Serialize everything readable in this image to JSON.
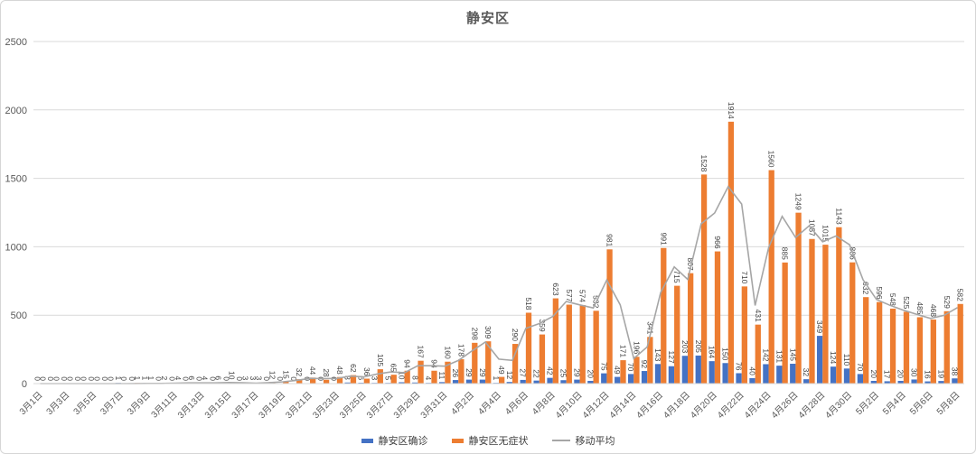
{
  "title": "静安区",
  "chart_data": {
    "type": "bar",
    "title": "静安区",
    "categories": [
      "3月1日",
      "3月2日",
      "3月3日",
      "3月4日",
      "3月5日",
      "3月6日",
      "3月7日",
      "3月8日",
      "3月9日",
      "3月10日",
      "3月11日",
      "3月12日",
      "3月13日",
      "3月14日",
      "3月15日",
      "3月16日",
      "3月17日",
      "3月18日",
      "3月19日",
      "3月20日",
      "3月21日",
      "3月22日",
      "3月23日",
      "3月24日",
      "3月25日",
      "3月26日",
      "3月27日",
      "3月28日",
      "3月29日",
      "3月30日",
      "3月31日",
      "4月1日",
      "4月2日",
      "4月3日",
      "4月4日",
      "4月5日",
      "4月6日",
      "4月7日",
      "4月8日",
      "4月9日",
      "4月10日",
      "4月11日",
      "4月12日",
      "4月13日",
      "4月14日",
      "4月15日",
      "4月16日",
      "4月17日",
      "4月18日",
      "4月19日",
      "4月20日",
      "4月21日",
      "4月22日",
      "4月23日",
      "4月24日",
      "4月25日",
      "4月26日",
      "4月27日",
      "4月28日",
      "4月29日",
      "4月30日",
      "5月1日",
      "5月2日",
      "5月3日",
      "5月4日",
      "5月5日",
      "5月6日",
      "5月7日",
      "5月8日"
    ],
    "x_tick_every": 2,
    "series": [
      {
        "name": "静安区确诊",
        "type": "bar",
        "color": "#4472C4",
        "values": [
          0,
          0,
          0,
          0,
          0,
          0,
          1,
          0,
          1,
          0,
          0,
          0,
          0,
          0,
          0,
          0,
          3,
          0,
          0,
          0,
          0,
          0,
          0,
          8,
          6,
          3,
          5,
          10,
          8,
          4,
          11,
          26,
          29,
          29,
          1,
          12,
          27,
          22,
          42,
          25,
          29,
          20,
          75,
          49,
          70,
          92,
          143,
          127,
          203,
          205,
          164,
          150,
          76,
          40,
          142,
          131,
          145,
          32,
          349,
          124,
          110,
          70,
          20,
          17,
          20,
          30,
          16,
          19,
          38
        ]
      },
      {
        "name": "静安区无症状",
        "type": "bar",
        "color": "#ED7D31",
        "values": [
          0,
          0,
          0,
          0,
          0,
          0,
          0,
          1,
          1,
          2,
          4,
          6,
          4,
          6,
          10,
          3,
          3,
          12,
          15,
          32,
          44,
          28,
          48,
          62,
          36,
          105,
          65,
          94,
          167,
          94,
          160,
          178,
          298,
          309,
          49,
          290,
          518,
          359,
          623,
          577,
          574,
          532,
          981,
          171,
          196,
          341,
          991,
          715,
          807,
          1528,
          966,
          1914,
          710,
          431,
          1560,
          885,
          1249,
          1057,
          1015,
          1143,
          886,
          632,
          596,
          548,
          525,
          485,
          468,
          529,
          582
        ]
      },
      {
        "name": "移动平均",
        "type": "line",
        "color": "#A6A6A6",
        "values": [
          0,
          0,
          0,
          0,
          0,
          0,
          0,
          0.5,
          1,
          1.5,
          3,
          5,
          5,
          5,
          8,
          6.5,
          3,
          7.5,
          13.5,
          23.5,
          38,
          36,
          38,
          55,
          49,
          70.5,
          85,
          79.5,
          130.5,
          130.5,
          127,
          169,
          238,
          303.5,
          179,
          169.5,
          404,
          438.5,
          491,
          600,
          575.5,
          553,
          756.5,
          576,
          183.5,
          268.5,
          666,
          853,
          761,
          1167.5,
          1247,
          1440,
          1312,
          570.5,
          995.5,
          1222.5,
          1067,
          1153,
          1036,
          1079,
          1014.5,
          759,
          614,
          572,
          536.5,
          505,
          476.5,
          498.5,
          555.5
        ]
      }
    ],
    "ylim": [
      0,
      2500
    ],
    "yticks": [
      0,
      500,
      1000,
      1500,
      2000,
      2500
    ],
    "grid": "horizontal",
    "legend_position": "bottom",
    "data_labels": "rotated-vertical",
    "colors": {
      "grid": "#D9D9D9",
      "axis_text": "#595959",
      "label_text": "#404040"
    }
  }
}
